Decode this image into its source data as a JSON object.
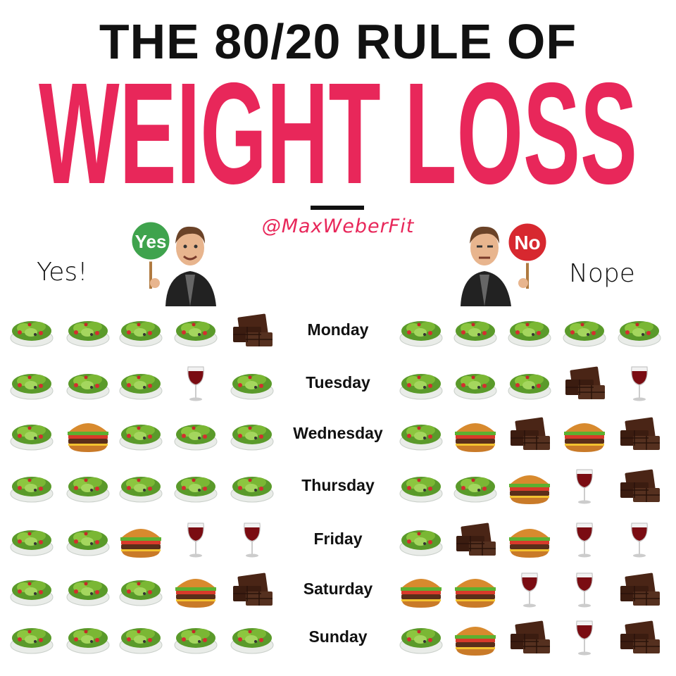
{
  "title": {
    "line1": "THE 80/20 RULE OF",
    "line2": "WEIGHT LOSS"
  },
  "handle": "@MaxWeberFit",
  "yes_side": {
    "label": "Yes!",
    "sign": "Yes",
    "sign_color": "#3fa34d"
  },
  "no_side": {
    "label": "Nope",
    "sign": "No",
    "sign_color": "#d7282f"
  },
  "colors": {
    "accent": "#e8275a",
    "text": "#111111"
  },
  "legend_icons": {
    "S": "salad-icon",
    "B": "burger-icon",
    "C": "chocolate-icon",
    "W": "wine-icon"
  },
  "days": [
    {
      "name": "Monday",
      "yes": [
        "S",
        "S",
        "S",
        "S",
        "C"
      ],
      "nope": [
        "S",
        "S",
        "S",
        "S",
        "S"
      ]
    },
    {
      "name": "Tuesday",
      "yes": [
        "S",
        "S",
        "S",
        "W",
        "S"
      ],
      "nope": [
        "S",
        "S",
        "S",
        "C",
        "W"
      ]
    },
    {
      "name": "Wednesday",
      "yes": [
        "S",
        "B",
        "S",
        "S",
        "S"
      ],
      "nope": [
        "S",
        "B",
        "C",
        "B",
        "C"
      ]
    },
    {
      "name": "Thursday",
      "yes": [
        "S",
        "S",
        "S",
        "S",
        "S"
      ],
      "nope": [
        "S",
        "S",
        "B",
        "W",
        "C"
      ]
    },
    {
      "name": "Friday",
      "yes": [
        "S",
        "S",
        "B",
        "W",
        "W"
      ],
      "nope": [
        "S",
        "C",
        "B",
        "W",
        "W"
      ]
    },
    {
      "name": "Saturday",
      "yes": [
        "S",
        "S",
        "S",
        "B",
        "C"
      ],
      "nope": [
        "B",
        "B",
        "W",
        "W",
        "C"
      ]
    },
    {
      "name": "Sunday",
      "yes": [
        "S",
        "S",
        "S",
        "S",
        "S"
      ],
      "nope": [
        "S",
        "B",
        "C",
        "W",
        "C"
      ]
    }
  ]
}
